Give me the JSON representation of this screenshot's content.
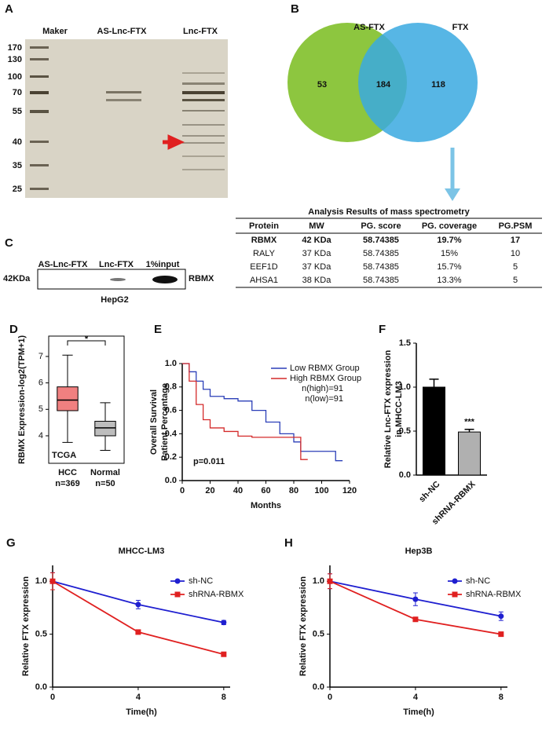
{
  "panels": [
    "A",
    "B",
    "C",
    "D",
    "E",
    "F",
    "G",
    "H"
  ],
  "gel": {
    "lanes": [
      "Maker",
      "AS-Lnc-FTX",
      "Lnc-FTX"
    ],
    "ladder": [
      "170",
      "130",
      "100",
      "70",
      "55",
      "40",
      "35",
      "25"
    ]
  },
  "venn": {
    "sets": [
      "AS-FTX",
      "FTX"
    ],
    "counts": [
      "53",
      "184",
      "118"
    ]
  },
  "table": {
    "title": "Analysis Results of mass spectrometry",
    "header": [
      "Protein",
      "MW",
      "PG. score",
      "PG. coverage",
      "PG.PSM"
    ],
    "rows": [
      [
        "RBMX",
        "42 KDa",
        "58.74385",
        "19.7%",
        "17"
      ],
      [
        "RALY",
        "37 KDa",
        "58.74385",
        "15%",
        "10"
      ],
      [
        "EEF1D",
        "37 KDa",
        "58.74385",
        "15.7%",
        "5"
      ],
      [
        "AHSA1",
        "38 KDa",
        "58.74385",
        "13.3%",
        "5"
      ]
    ]
  },
  "blot": {
    "lanes": [
      "AS-Lnc-FTX",
      "Lnc-FTX",
      "1%input"
    ],
    "size": "42KDa",
    "protein": "RBMX",
    "cell": "HepG2"
  },
  "chart_data": [
    {
      "type": "box",
      "ylabel": "RBMX Expression-log2(TPM+1)",
      "categories": [
        "HCC",
        "Normal"
      ],
      "counts": [
        "n=369",
        "n=50"
      ],
      "boxes": [
        {
          "min": 3.75,
          "q1": 4.95,
          "median": 5.35,
          "q3": 5.85,
          "max": 7.05,
          "color": "#f08080"
        },
        {
          "min": 3.45,
          "q1": 4.0,
          "median": 4.3,
          "q3": 4.55,
          "max": 5.25,
          "color": "#bdbdbd"
        }
      ],
      "ylim": [
        2.96,
        7.77
      ],
      "yticks": [
        4,
        5,
        6,
        7
      ],
      "annotations": [
        "TCGA",
        "*"
      ]
    },
    {
      "type": "step",
      "xlabel": "Months",
      "ylabel": [
        "Overall Survival",
        "Patient Percentage"
      ],
      "series": [
        {
          "name": "Low RBMX Group",
          "color": "#2b3fb8",
          "x": [
            0,
            5,
            10,
            15,
            20,
            30,
            40,
            50,
            60,
            70,
            80,
            85,
            90,
            100,
            110,
            115
          ],
          "values": [
            1,
            0.93,
            0.85,
            0.78,
            0.72,
            0.7,
            0.68,
            0.6,
            0.5,
            0.4,
            0.33,
            0.25,
            0.25,
            0.25,
            0.17,
            0.17
          ]
        },
        {
          "name": "High RBMX Group",
          "color": "#d42a2a",
          "x": [
            0,
            5,
            10,
            15,
            20,
            30,
            40,
            50,
            60,
            75,
            80,
            85,
            90
          ],
          "values": [
            1,
            0.85,
            0.65,
            0.52,
            0.45,
            0.42,
            0.38,
            0.37,
            0.37,
            0.37,
            0.37,
            0.18,
            0.18
          ]
        }
      ],
      "notes": [
        "n(high)=91",
        "n(low)=91"
      ],
      "pvalue": "p=0.011",
      "xlim": [
        0,
        120
      ],
      "xticks": [
        0,
        20,
        40,
        60,
        80,
        100,
        120
      ],
      "ylim": [
        0,
        1.0
      ],
      "yticks": [
        {
          "value": 0,
          "label": "0.0"
        },
        0.2,
        0.4,
        0.6,
        0.8,
        {
          "value": 1,
          "label": "1.0"
        }
      ]
    },
    {
      "type": "bar",
      "ylabel": [
        "Relative Lnc-FTX expression",
        "in MHCC-LM3"
      ],
      "categories": [
        "sh-NC",
        "shRNA-RBMX"
      ],
      "values": [
        1.0,
        0.49
      ],
      "errors": [
        0.09,
        0.03
      ],
      "colors": [
        "#000000",
        "#b0b0b0"
      ],
      "annotations": [
        "***"
      ],
      "ylim": [
        0,
        1.5
      ],
      "yticks": [
        {
          "value": 0,
          "label": "0.0"
        },
        0.5,
        {
          "value": 1,
          "label": "1.0"
        },
        1.5
      ]
    },
    {
      "type": "line",
      "title": "MHCC-LM3",
      "xlabel": "Time(h)",
      "ylabel": "Relative FTX expression",
      "x": [
        0,
        4,
        8
      ],
      "series": [
        {
          "name": "sh-NC",
          "color": "#1f1fd0",
          "marker": "circle",
          "values": [
            1,
            0.78,
            0.61
          ],
          "errors": [
            0.08,
            0.04,
            0.02
          ]
        },
        {
          "name": "shRNA-RBMX",
          "color": "#e02020",
          "marker": "square",
          "values": [
            1,
            0.52,
            0.31
          ],
          "errors": [
            0.08,
            0.02,
            0.02
          ]
        }
      ],
      "xlim": [
        0,
        8.3
      ],
      "xticks": [
        0,
        4,
        8
      ],
      "ylim": [
        0,
        1.15
      ],
      "yticks": [
        {
          "value": 0,
          "label": "0.0"
        },
        0.5,
        {
          "value": 1,
          "label": "1.0"
        }
      ]
    },
    {
      "type": "line",
      "title": "Hep3B",
      "xlabel": "Time(h)",
      "ylabel": "Relative FTX expression",
      "x": [
        0,
        4,
        8
      ],
      "series": [
        {
          "name": "sh-NC",
          "color": "#1f1fd0",
          "marker": "circle",
          "values": [
            1,
            0.83,
            0.67
          ],
          "errors": [
            0.07,
            0.06,
            0.04
          ]
        },
        {
          "name": "shRNA-RBMX",
          "color": "#e02020",
          "marker": "square",
          "values": [
            1,
            0.64,
            0.5
          ],
          "errors": [
            0.07,
            0.02,
            0.02
          ]
        }
      ],
      "xlim": [
        0,
        8.3
      ],
      "xticks": [
        0,
        4,
        8
      ],
      "ylim": [
        0,
        1.15
      ],
      "yticks": [
        {
          "value": 0,
          "label": "0.0"
        },
        0.5,
        {
          "value": 1,
          "label": "1.0"
        }
      ]
    }
  ]
}
